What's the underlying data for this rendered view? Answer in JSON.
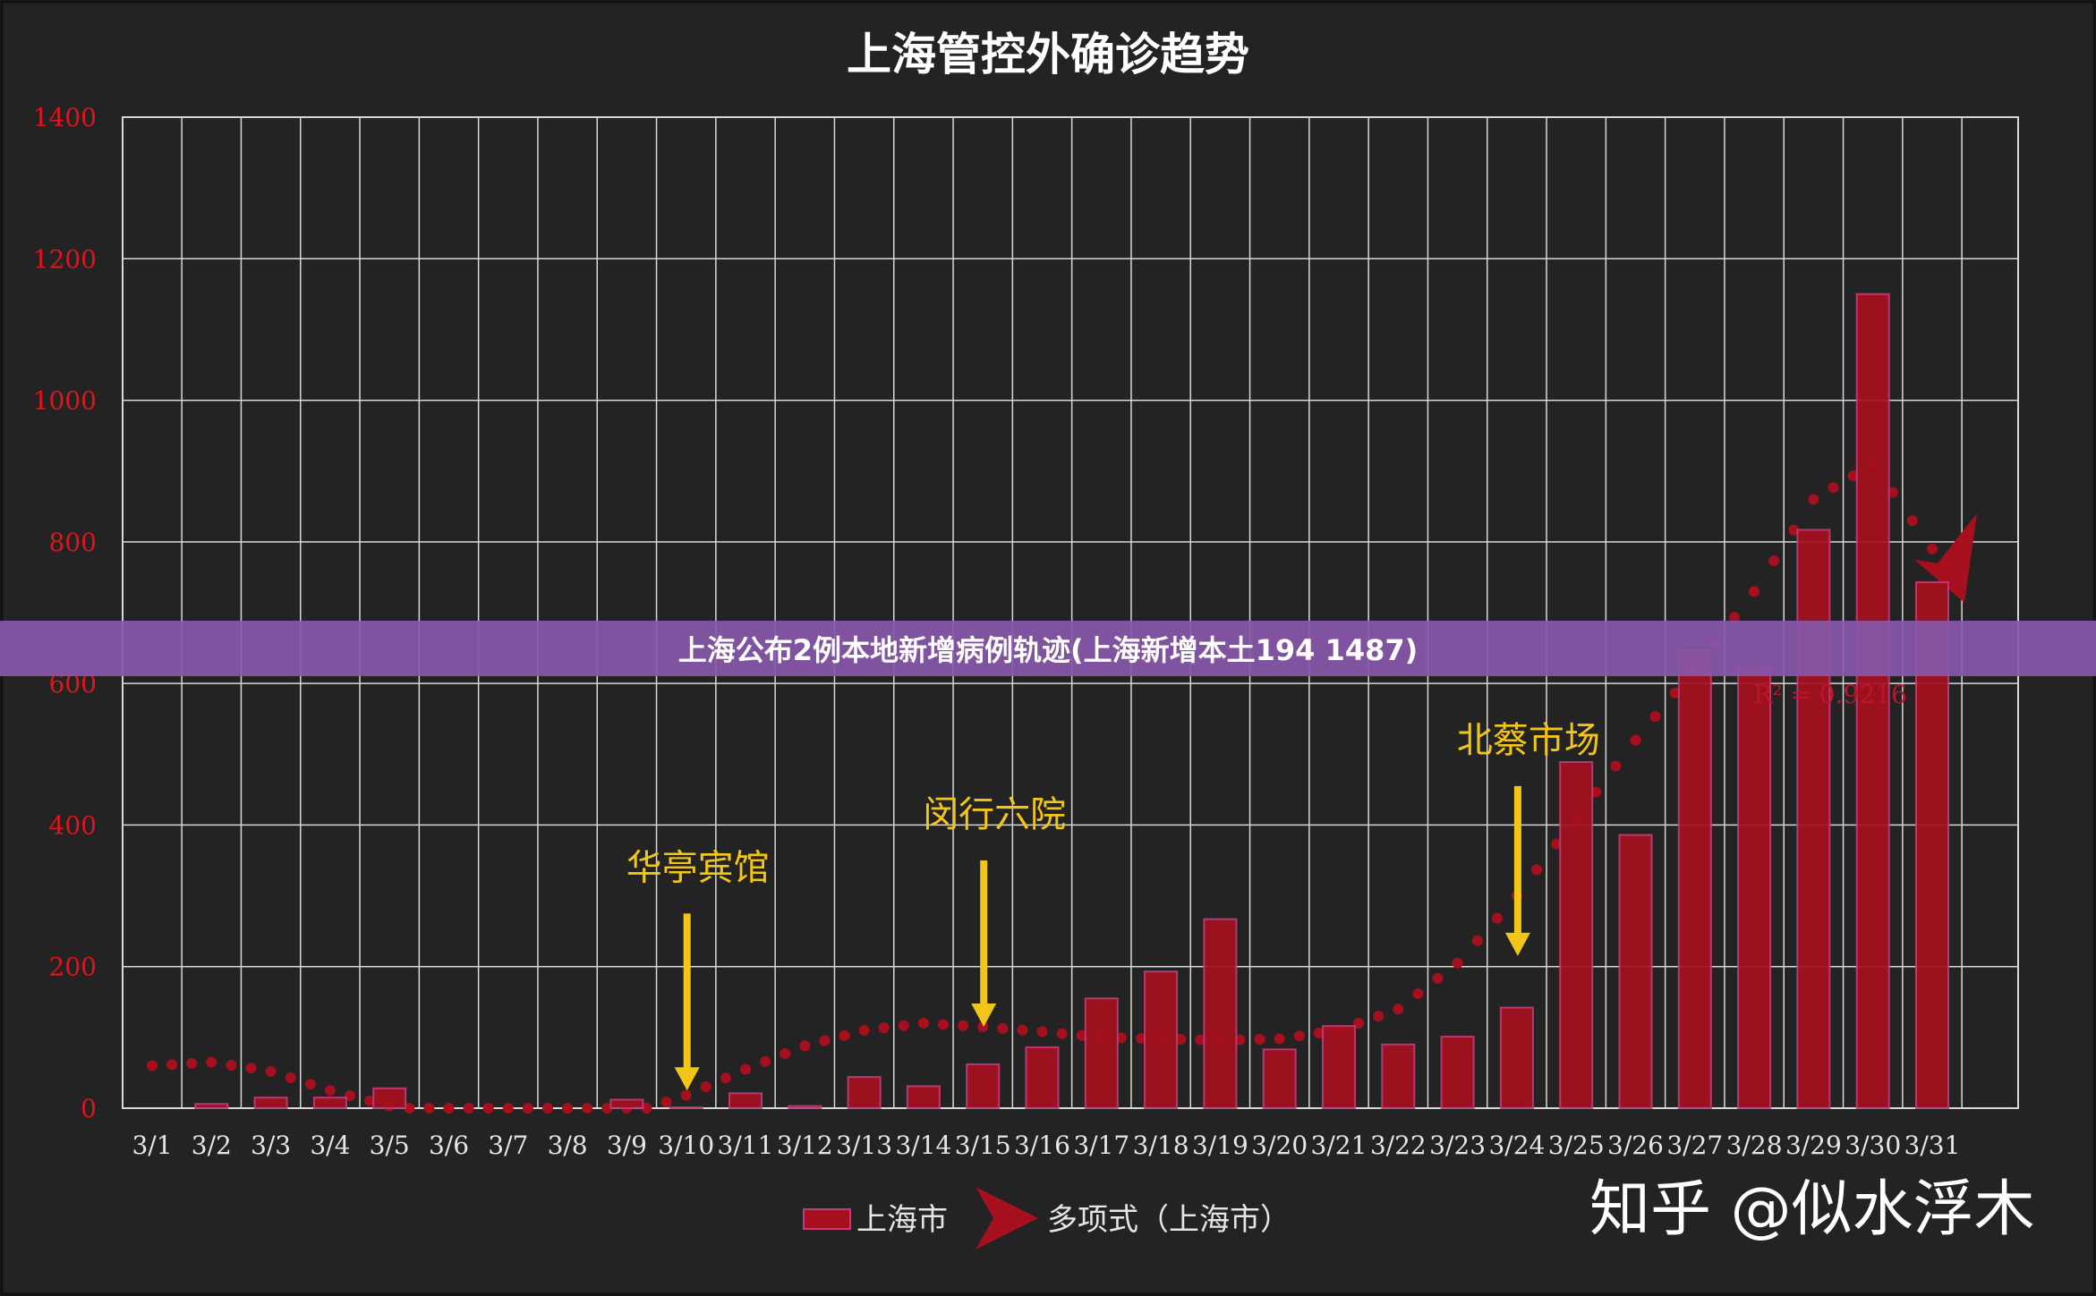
{
  "colors": {
    "background": "#232323",
    "grid": "#d8d8d8",
    "bar": "#a6101e",
    "trend": "#a6101e",
    "annotation": "#f2c618",
    "ytick": "#e0141e",
    "banner": "#8858aa"
  },
  "banner": {
    "text": "上海公布2例本地新增病例轨迹(上海新增本土194 1487)"
  },
  "watermark": {
    "text": "知乎 @似水浮木"
  },
  "chart_data": {
    "type": "bar",
    "title": "上海管控外确诊趋势",
    "categories": [
      "3/1",
      "3/2",
      "3/3",
      "3/4",
      "3/5",
      "3/6",
      "3/7",
      "3/8",
      "3/9",
      "3/10",
      "3/11",
      "3/12",
      "3/13",
      "3/14",
      "3/15",
      "3/16",
      "3/17",
      "3/18",
      "3/19",
      "3/20",
      "3/21",
      "3/22",
      "3/23",
      "3/24",
      "3/25",
      "3/26",
      "3/27",
      "3/28",
      "3/29",
      "3/30",
      "3/31"
    ],
    "series": [
      {
        "name": "上海市",
        "values": [
          0,
          6,
          15,
          15,
          28,
          0,
          0,
          0,
          12,
          1,
          21,
          3,
          44,
          31,
          62,
          86,
          155,
          193,
          267,
          83,
          116,
          90,
          101,
          142,
          489,
          386,
          647,
          625,
          817,
          1150,
          743
        ]
      }
    ],
    "trendline": {
      "name": "多项式（上海市）",
      "r_squared_label": "R² = 0.9216",
      "values": [
        60,
        65,
        52,
        25,
        3,
        -20,
        -30,
        -25,
        -10,
        18,
        55,
        88,
        110,
        120,
        115,
        108,
        100,
        98,
        96,
        98,
        110,
        140,
        205,
        300,
        410,
        520,
        620,
        730,
        860,
        910,
        790
      ]
    },
    "annotations": [
      {
        "text": "华亭宾馆",
        "category": "3/10",
        "arrow_from": 275,
        "arrow_to": 25
      },
      {
        "text": "闵行六院",
        "category": "3/15",
        "arrow_from": 350,
        "arrow_to": 115
      },
      {
        "text": "北蔡市场",
        "category": "3/24",
        "arrow_from": 455,
        "arrow_to": 215
      }
    ],
    "ylim": [
      0,
      1400
    ],
    "yticks": [
      0,
      200,
      400,
      600,
      800,
      1000,
      1200,
      1400
    ],
    "grid": true,
    "legend_position": "bottom"
  }
}
